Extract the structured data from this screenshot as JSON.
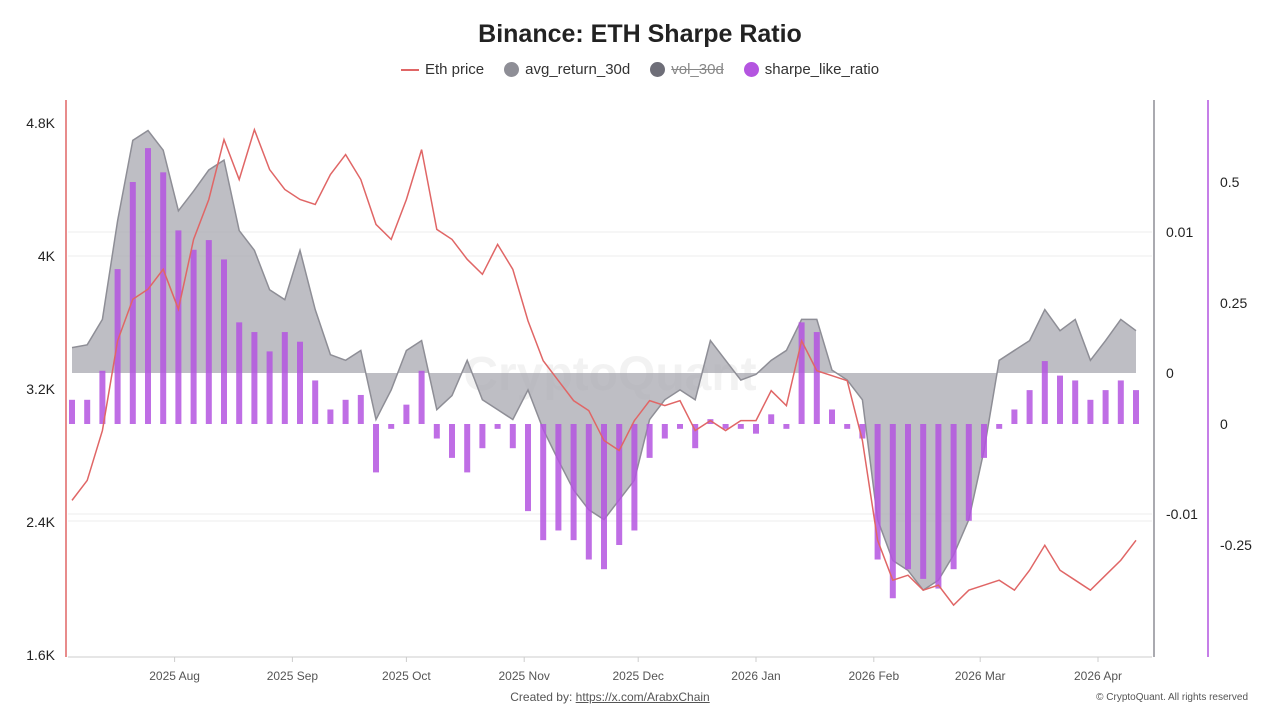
{
  "chart_data": {
    "type": "bar+line+area",
    "title": "Binance: ETH Sharpe Ratio",
    "legend_position": "top",
    "legend": [
      {
        "name": "Eth price",
        "color": "#e06666",
        "marker": "line",
        "hidden": false
      },
      {
        "name": "avg_return_30d",
        "color": "#8e8e96",
        "marker": "dot",
        "hidden": false
      },
      {
        "name": "vol_30d",
        "color": "#6e6e78",
        "marker": "dot",
        "hidden": true
      },
      {
        "name": "sharpe_like_ratio",
        "color": "#b455e0",
        "marker": "dot",
        "hidden": false
      }
    ],
    "x_ticks": [
      "2025 Aug",
      "2025 Sep",
      "2025 Oct",
      "2025 Nov",
      "2025 Dec",
      "2026 Jan",
      "2026 Feb",
      "2026 Mar",
      "2026 Apr"
    ],
    "y_left": {
      "ticks": [
        "1.6K",
        "2.4K",
        "3.2K",
        "4K",
        "4.8K"
      ],
      "ylim": [
        1600,
        4800
      ],
      "color": "#e06666"
    },
    "y_mid": {
      "ticks": [
        "-0.01",
        "0",
        "0.01"
      ],
      "color": "#8e8e96"
    },
    "y_right": {
      "ticks": [
        "-0.25",
        "0",
        "0.25",
        "0.5"
      ],
      "color": "#b455e0"
    },
    "grid": true,
    "x": [
      "2025-07-05",
      "2025-07-09",
      "2025-07-13",
      "2025-07-17",
      "2025-07-21",
      "2025-07-25",
      "2025-07-29",
      "2025-08-02",
      "2025-08-06",
      "2025-08-10",
      "2025-08-14",
      "2025-08-18",
      "2025-08-22",
      "2025-08-26",
      "2025-08-30",
      "2025-09-03",
      "2025-09-07",
      "2025-09-11",
      "2025-09-15",
      "2025-09-19",
      "2025-09-23",
      "2025-09-27",
      "2025-10-01",
      "2025-10-05",
      "2025-10-09",
      "2025-10-13",
      "2025-10-17",
      "2025-10-21",
      "2025-10-25",
      "2025-10-29",
      "2025-11-02",
      "2025-11-06",
      "2025-11-10",
      "2025-11-14",
      "2025-11-18",
      "2025-11-22",
      "2025-11-26",
      "2025-11-30",
      "2025-12-04",
      "2025-12-08",
      "2025-12-12",
      "2025-12-16",
      "2025-12-20",
      "2025-12-24",
      "2025-12-28",
      "2026-01-01",
      "2026-01-05",
      "2026-01-09",
      "2026-01-13",
      "2026-01-17",
      "2026-01-21",
      "2026-01-25",
      "2026-01-29",
      "2026-02-02",
      "2026-02-06",
      "2026-02-10",
      "2026-02-14",
      "2026-02-18",
      "2026-02-22",
      "2026-02-26",
      "2026-03-02",
      "2026-03-06",
      "2026-03-10",
      "2026-03-14",
      "2026-03-18",
      "2026-03-22",
      "2026-03-26",
      "2026-03-30",
      "2026-04-03",
      "2026-04-07",
      "2026-04-11"
    ],
    "series": [
      {
        "name": "Eth price",
        "axis": "left",
        "values": [
          2530,
          2650,
          2950,
          3490,
          3740,
          3800,
          3920,
          3680,
          4100,
          4340,
          4700,
          4460,
          4760,
          4520,
          4400,
          4340,
          4310,
          4490,
          4610,
          4460,
          4190,
          4100,
          4340,
          4640,
          4160,
          4100,
          3980,
          3890,
          4070,
          3920,
          3610,
          3370,
          3250,
          3130,
          3070,
          2890,
          2830,
          3010,
          3130,
          3100,
          3130,
          2950,
          3010,
          2950,
          3010,
          3010,
          3190,
          3100,
          3490,
          3310,
          3280,
          3250,
          2890,
          2290,
          2050,
          2080,
          1990,
          2020,
          1900,
          1990,
          2020,
          2050,
          1990,
          2110,
          2260,
          2110,
          2050,
          1990,
          2080,
          2170,
          2290
        ]
      },
      {
        "name": "avg_return_30d",
        "axis": "mid",
        "values": [
          0.0018,
          0.002,
          0.0038,
          0.0108,
          0.0165,
          0.0172,
          0.0158,
          0.0115,
          0.0129,
          0.0144,
          0.0151,
          0.0101,
          0.0087,
          0.0059,
          0.0052,
          0.0087,
          0.0045,
          0.0013,
          0.0009,
          0.0016,
          -0.0033,
          -0.0012,
          0.0016,
          0.0023,
          -0.0026,
          -0.0016,
          0.0009,
          -0.0019,
          -0.0026,
          -0.0033,
          -0.0012,
          -0.004,
          -0.0062,
          -0.0083,
          -0.0097,
          -0.0104,
          -0.009,
          -0.0076,
          -0.0033,
          -0.0019,
          -0.0012,
          -0.0019,
          0.0023,
          0.0009,
          -0.0005,
          -0.0001,
          0.0009,
          0.0016,
          0.0038,
          0.0038,
          0.0002,
          -0.0005,
          -0.0019,
          -0.0104,
          -0.0133,
          -0.014,
          -0.0154,
          -0.0147,
          -0.0129,
          -0.0104,
          -0.0055,
          0.0009,
          0.0016,
          0.0023,
          0.0045,
          0.003,
          0.0038,
          0.0009,
          0.0023,
          0.0038,
          0.003
        ]
      },
      {
        "name": "sharpe_like_ratio",
        "axis": "right",
        "values": [
          0.05,
          0.05,
          0.11,
          0.32,
          0.5,
          0.57,
          0.52,
          0.4,
          0.36,
          0.38,
          0.34,
          0.21,
          0.19,
          0.15,
          0.19,
          0.17,
          0.09,
          0.03,
          0.05,
          0.06,
          -0.1,
          -0.01,
          0.04,
          0.11,
          -0.03,
          -0.07,
          -0.1,
          -0.05,
          -0.01,
          -0.05,
          -0.18,
          -0.24,
          -0.22,
          -0.24,
          -0.28,
          -0.3,
          -0.25,
          -0.22,
          -0.07,
          -0.03,
          -0.01,
          -0.05,
          0.01,
          -0.01,
          -0.01,
          -0.02,
          0.02,
          -0.01,
          0.21,
          0.19,
          0.03,
          -0.01,
          -0.03,
          -0.28,
          -0.36,
          -0.3,
          -0.32,
          -0.34,
          -0.3,
          -0.2,
          -0.07,
          -0.01,
          0.03,
          0.07,
          0.13,
          0.1,
          0.09,
          0.05,
          0.07,
          0.09,
          0.07
        ]
      }
    ]
  },
  "watermark": "CryptoQuant",
  "footer": {
    "created_label": "Created by:",
    "created_link": "https://x.com/ArabxChain",
    "copyright": "© CryptoQuant. All rights reserved"
  }
}
